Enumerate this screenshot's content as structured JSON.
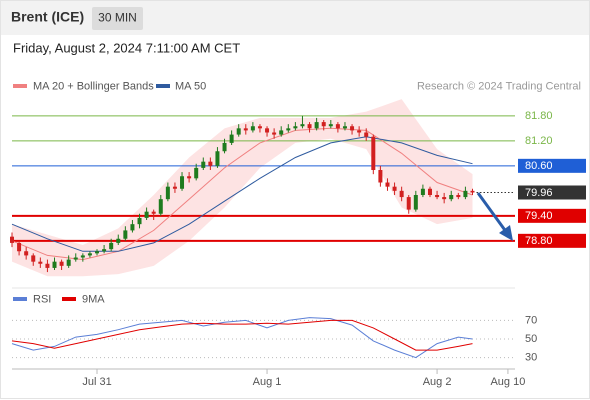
{
  "header": {
    "title": "Brent (ICE)",
    "interval": "30 MIN"
  },
  "timestamp": "Friday, August 2, 2024 7:11:00 AM CET",
  "chart_data": [
    {
      "type": "candlestick",
      "credit": "Research © 2024 Trading Central",
      "xlim": [
        0,
        71
      ],
      "ylim": [
        77.86,
        82.3
      ],
      "xticks": [
        {
          "value": 12,
          "label": "Jul 31"
        },
        {
          "value": 36,
          "label": "Aug 1"
        },
        {
          "value": 60,
          "label": "Aug 2"
        },
        {
          "value": 70,
          "label": "Aug 10"
        }
      ],
      "up_color": "#1e7b1e",
      "down_color": "#d22020",
      "x": [
        0,
        1,
        2,
        3,
        4,
        5,
        6,
        7,
        8,
        9,
        10,
        11,
        12,
        13,
        14,
        15,
        16,
        17,
        18,
        19,
        20,
        21,
        22,
        23,
        24,
        25,
        26,
        27,
        28,
        29,
        30,
        31,
        32,
        33,
        34,
        35,
        36,
        37,
        38,
        39,
        40,
        41,
        42,
        43,
        44,
        45,
        46,
        47,
        48,
        49,
        50,
        51,
        52,
        53,
        54,
        55,
        56,
        57,
        58,
        59,
        60,
        61,
        62,
        63,
        64,
        65
      ],
      "ohlc": [
        [
          78.9,
          79.0,
          78.65,
          78.75
        ],
        [
          78.75,
          78.8,
          78.45,
          78.55
        ],
        [
          78.55,
          78.65,
          78.35,
          78.45
        ],
        [
          78.45,
          78.5,
          78.2,
          78.3
        ],
        [
          78.3,
          78.4,
          78.15,
          78.25
        ],
        [
          78.25,
          78.35,
          78.05,
          78.15
        ],
        [
          78.15,
          78.4,
          78.1,
          78.3
        ],
        [
          78.3,
          78.35,
          78.1,
          78.2
        ],
        [
          78.2,
          78.45,
          78.15,
          78.35
        ],
        [
          78.35,
          78.5,
          78.3,
          78.4
        ],
        [
          78.4,
          78.5,
          78.3,
          78.45
        ],
        [
          78.45,
          78.55,
          78.4,
          78.5
        ],
        [
          78.5,
          78.6,
          78.45,
          78.55
        ],
        [
          78.55,
          78.7,
          78.5,
          78.6
        ],
        [
          78.6,
          78.85,
          78.55,
          78.75
        ],
        [
          78.75,
          78.95,
          78.7,
          78.85
        ],
        [
          78.85,
          79.15,
          78.8,
          79.05
        ],
        [
          79.05,
          79.3,
          79.0,
          79.2
        ],
        [
          79.2,
          79.45,
          79.1,
          79.35
        ],
        [
          79.35,
          79.6,
          79.3,
          79.5
        ],
        [
          79.5,
          79.55,
          79.3,
          79.45
        ],
        [
          79.45,
          79.9,
          79.4,
          79.8
        ],
        [
          79.8,
          80.2,
          79.75,
          80.1
        ],
        [
          80.1,
          80.2,
          79.95,
          80.05
        ],
        [
          80.05,
          80.45,
          80.0,
          80.35
        ],
        [
          80.35,
          80.45,
          80.2,
          80.3
        ],
        [
          80.3,
          80.65,
          80.25,
          80.55
        ],
        [
          80.55,
          80.8,
          80.5,
          80.7
        ],
        [
          80.7,
          80.8,
          80.5,
          80.6
        ],
        [
          80.6,
          81.05,
          80.55,
          80.95
        ],
        [
          80.95,
          81.25,
          80.9,
          81.15
        ],
        [
          81.15,
          81.45,
          81.1,
          81.35
        ],
        [
          81.35,
          81.6,
          81.3,
          81.5
        ],
        [
          81.5,
          81.6,
          81.35,
          81.45
        ],
        [
          81.45,
          81.65,
          81.4,
          81.55
        ],
        [
          81.55,
          81.6,
          81.4,
          81.5
        ],
        [
          81.5,
          81.55,
          81.3,
          81.4
        ],
        [
          81.4,
          81.5,
          81.25,
          81.35
        ],
        [
          81.35,
          81.55,
          81.3,
          81.45
        ],
        [
          81.45,
          81.6,
          81.4,
          81.5
        ],
        [
          81.5,
          81.65,
          81.45,
          81.55
        ],
        [
          81.55,
          81.8,
          81.5,
          81.6
        ],
        [
          81.6,
          81.65,
          81.4,
          81.5
        ],
        [
          81.5,
          81.75,
          81.45,
          81.65
        ],
        [
          81.65,
          81.7,
          81.45,
          81.55
        ],
        [
          81.55,
          81.7,
          81.5,
          81.6
        ],
        [
          81.6,
          81.65,
          81.4,
          81.5
        ],
        [
          81.5,
          81.65,
          81.45,
          81.55
        ],
        [
          81.55,
          81.6,
          81.35,
          81.45
        ],
        [
          81.45,
          81.55,
          81.3,
          81.4
        ],
        [
          81.4,
          81.5,
          81.2,
          81.3
        ],
        [
          81.3,
          81.35,
          80.4,
          80.5
        ],
        [
          80.5,
          80.6,
          80.1,
          80.2
        ],
        [
          80.2,
          80.3,
          80.0,
          80.1
        ],
        [
          80.1,
          80.2,
          79.9,
          80.0
        ],
        [
          80.0,
          80.1,
          79.75,
          79.85
        ],
        [
          79.85,
          79.9,
          79.45,
          79.55
        ],
        [
          79.55,
          80.0,
          79.5,
          79.9
        ],
        [
          79.9,
          80.15,
          79.85,
          80.05
        ],
        [
          80.05,
          80.1,
          79.85,
          79.9
        ],
        [
          79.9,
          80.0,
          79.8,
          79.85
        ],
        [
          79.85,
          79.95,
          79.7,
          79.8
        ],
        [
          79.8,
          80.0,
          79.75,
          79.9
        ],
        [
          79.9,
          79.95,
          79.8,
          79.85
        ],
        [
          79.85,
          80.1,
          79.8,
          80.0
        ],
        [
          80.0,
          80.05,
          79.9,
          79.96
        ]
      ],
      "bands": {
        "name": "MA 20 + Bollinger Bands",
        "color": "#f08080",
        "fill": "#fde3e3",
        "x": [
          0,
          5,
          10,
          15,
          20,
          25,
          30,
          35,
          40,
          45,
          50,
          55,
          60,
          65
        ],
        "ma": [
          78.8,
          78.45,
          78.35,
          78.55,
          79.05,
          79.8,
          80.55,
          81.15,
          81.45,
          81.5,
          81.45,
          80.9,
          80.2,
          79.9
        ],
        "upper": [
          79.2,
          78.95,
          78.7,
          79.1,
          79.9,
          80.8,
          81.5,
          81.75,
          81.75,
          81.75,
          81.9,
          82.2,
          81.0,
          80.4
        ],
        "lower": [
          78.3,
          77.95,
          77.95,
          78.0,
          78.2,
          78.8,
          79.6,
          80.55,
          81.15,
          81.25,
          81.0,
          79.6,
          79.2,
          79.35
        ]
      },
      "ma50": {
        "name": "MA 50",
        "color": "#2f5b9f",
        "x": [
          0,
          5,
          10,
          15,
          20,
          25,
          30,
          35,
          40,
          45,
          50,
          55,
          60,
          65
        ],
        "values": [
          79.2,
          78.85,
          78.55,
          78.55,
          78.75,
          79.2,
          79.75,
          80.3,
          80.8,
          81.15,
          81.3,
          81.15,
          80.85,
          80.65
        ]
      },
      "levels": [
        {
          "value": 81.8,
          "label": "81.80",
          "color": "#7ab648",
          "box": false,
          "line_width": 1
        },
        {
          "value": 81.2,
          "label": "81.20",
          "color": "#7ab648",
          "box": false,
          "line_width": 1
        },
        {
          "value": 80.6,
          "label": "80.60",
          "color": "#1f5fd6",
          "box": true,
          "line_width": 1
        },
        {
          "value": 79.96,
          "label": "79.96",
          "color": "#333333",
          "box": true,
          "line_width": 1,
          "dotted": true
        },
        {
          "value": 79.4,
          "label": "79.40",
          "color": "#e00000",
          "box": true,
          "line_width": 2
        },
        {
          "value": 78.8,
          "label": "78.80",
          "color": "#e00000",
          "box": true,
          "line_width": 2
        }
      ]
    },
    {
      "type": "line",
      "xlim": [
        0,
        71
      ],
      "ylim": [
        22,
        92
      ],
      "yticks": [
        70,
        50,
        30
      ],
      "series": [
        {
          "name": "RSI",
          "color": "#5b7fd6",
          "x": [
            0,
            3,
            6,
            9,
            12,
            15,
            18,
            21,
            24,
            27,
            30,
            33,
            36,
            39,
            42,
            45,
            48,
            51,
            54,
            57,
            60,
            63,
            65
          ],
          "values": [
            45,
            38,
            42,
            52,
            55,
            60,
            66,
            68,
            70,
            64,
            68,
            70,
            62,
            70,
            73,
            72,
            65,
            48,
            38,
            30,
            45,
            52,
            50
          ]
        },
        {
          "name": "9MA",
          "color": "#e00000",
          "x": [
            0,
            3,
            6,
            9,
            12,
            15,
            18,
            21,
            24,
            27,
            30,
            33,
            36,
            39,
            42,
            45,
            48,
            51,
            54,
            57,
            60,
            63,
            65
          ],
          "values": [
            48,
            45,
            40,
            45,
            50,
            55,
            60,
            63,
            66,
            67,
            66,
            66,
            67,
            66,
            68,
            70,
            70,
            62,
            50,
            38,
            38,
            42,
            45
          ]
        }
      ]
    }
  ]
}
